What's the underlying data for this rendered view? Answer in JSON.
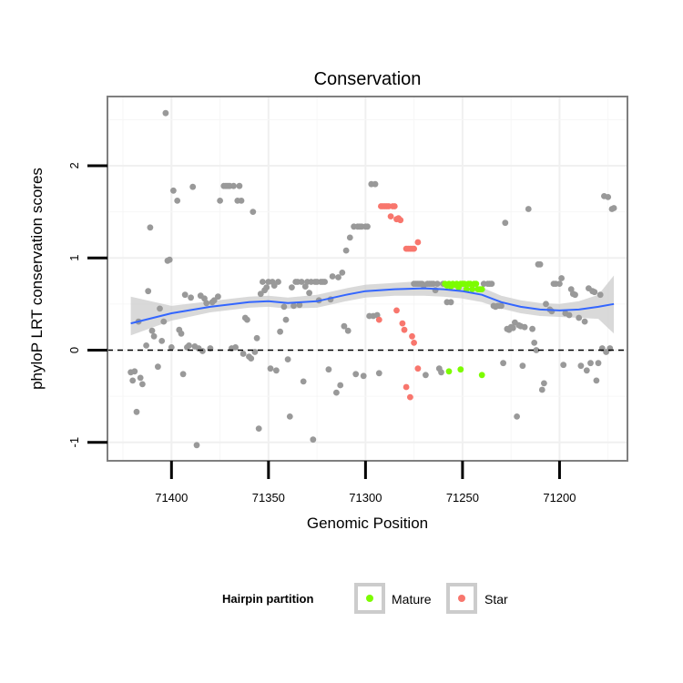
{
  "chart_data": {
    "type": "scatter",
    "title": "Conservation",
    "xlabel": "Genomic Position",
    "ylabel": "phyloP LRT conservation scores",
    "xlim": [
      71433,
      71165
    ],
    "ylim": [
      -1.2,
      2.75
    ],
    "x_reversed": true,
    "x_ticks": [
      71400,
      71350,
      71300,
      71250,
      71200
    ],
    "y_ticks": [
      -1,
      0,
      1,
      2
    ],
    "reference_line": {
      "y": 0,
      "style": "dashed"
    },
    "grid": true,
    "legend_position": "bottom",
    "legend": {
      "title": "Hairpin partition",
      "entries": [
        {
          "label": "Mature",
          "color": "#7cfc00"
        },
        {
          "label": "Star",
          "color": "#f8766d"
        }
      ]
    },
    "colors": {
      "other": "#999999",
      "Mature": "#7cfc00",
      "Star": "#f8766d",
      "smooth": "#3366ff",
      "ribbon": "#cccccc"
    },
    "series": [
      {
        "name": "other",
        "points": [
          [
            71421,
            -0.24
          ],
          [
            71419,
            -0.23
          ],
          [
            71420,
            -0.33
          ],
          [
            71418,
            -0.67
          ],
          [
            71416,
            -0.3
          ],
          [
            71415,
            -0.37
          ],
          [
            71417,
            0.31
          ],
          [
            71413,
            0.05
          ],
          [
            71412,
            0.64
          ],
          [
            71411,
            1.33
          ],
          [
            71410,
            0.21
          ],
          [
            71409,
            0.15
          ],
          [
            71407,
            -0.18
          ],
          [
            71406,
            0.45
          ],
          [
            71405,
            0.1
          ],
          [
            71404,
            0.31
          ],
          [
            71403,
            2.57
          ],
          [
            71402,
            0.97
          ],
          [
            71401,
            0.98
          ],
          [
            71400,
            0.03
          ],
          [
            71399,
            1.73
          ],
          [
            71397,
            1.62
          ],
          [
            71396,
            0.22
          ],
          [
            71395,
            0.18
          ],
          [
            71394,
            -0.26
          ],
          [
            71393,
            0.6
          ],
          [
            71392,
            0.03
          ],
          [
            71391,
            0.05
          ],
          [
            71390,
            0.57
          ],
          [
            71389,
            1.77
          ],
          [
            71388,
            0.04
          ],
          [
            71387,
            -1.03
          ],
          [
            71386,
            0.02
          ],
          [
            71385,
            0.59
          ],
          [
            71384,
            -0.01
          ],
          [
            71383,
            0.56
          ],
          [
            71382,
            0.51
          ],
          [
            71380,
            0.02
          ],
          [
            71379,
            0.52
          ],
          [
            71378,
            0.54
          ],
          [
            71376,
            0.58
          ],
          [
            71375,
            1.62
          ],
          [
            71373,
            1.78
          ],
          [
            71372,
            1.78
          ],
          [
            71371,
            1.78
          ],
          [
            71370,
            1.78
          ],
          [
            71369,
            0.02
          ],
          [
            71368,
            1.78
          ],
          [
            71367,
            0.03
          ],
          [
            71366,
            1.62
          ],
          [
            71365,
            1.78
          ],
          [
            71364,
            1.62
          ],
          [
            71363,
            -0.04
          ],
          [
            71362,
            0.35
          ],
          [
            71361,
            0.33
          ],
          [
            71360,
            -0.07
          ],
          [
            71359,
            -0.09
          ],
          [
            71358,
            1.5
          ],
          [
            71357,
            -0.02
          ],
          [
            71356,
            0.13
          ],
          [
            71355,
            -0.85
          ],
          [
            71354,
            0.61
          ],
          [
            71353,
            0.74
          ],
          [
            71352,
            0.65
          ],
          [
            71351,
            0.68
          ],
          [
            71350,
            0.74
          ],
          [
            71349,
            -0.2
          ],
          [
            71348,
            0.74
          ],
          [
            71347,
            0.7
          ],
          [
            71346,
            -0.22
          ],
          [
            71345,
            0.74
          ],
          [
            71344,
            0.2
          ],
          [
            71342,
            0.47
          ],
          [
            71341,
            0.33
          ],
          [
            71340,
            -0.1
          ],
          [
            71339,
            -0.72
          ],
          [
            71338,
            0.68
          ],
          [
            71337,
            0.48
          ],
          [
            71336,
            0.74
          ],
          [
            71335,
            0.74
          ],
          [
            71334,
            0.49
          ],
          [
            71333,
            0.74
          ],
          [
            71332,
            -0.34
          ],
          [
            71331,
            0.69
          ],
          [
            71330,
            0.74
          ],
          [
            71329,
            0.62
          ],
          [
            71328,
            0.74
          ],
          [
            71327,
            -0.97
          ],
          [
            71326,
            0.74
          ],
          [
            71325,
            0.74
          ],
          [
            71324,
            0.54
          ],
          [
            71323,
            0.74
          ],
          [
            71322,
            0.74
          ],
          [
            71321,
            0.74
          ],
          [
            71319,
            -0.21
          ],
          [
            71318,
            0.55
          ],
          [
            71317,
            0.8
          ],
          [
            71315,
            -0.46
          ],
          [
            71314,
            0.79
          ],
          [
            71313,
            -0.38
          ],
          [
            71312,
            0.84
          ],
          [
            71311,
            0.26
          ],
          [
            71310,
            1.08
          ],
          [
            71309,
            0.21
          ],
          [
            71308,
            1.22
          ],
          [
            71306,
            1.34
          ],
          [
            71305,
            -0.26
          ],
          [
            71304,
            1.34
          ],
          [
            71303,
            1.34
          ],
          [
            71302,
            1.34
          ],
          [
            71301,
            -0.28
          ],
          [
            71300,
            1.34
          ],
          [
            71299,
            1.34
          ],
          [
            71298,
            0.37
          ],
          [
            71297,
            1.8
          ],
          [
            71296,
            0.37
          ],
          [
            71295,
            1.8
          ],
          [
            71294,
            0.38
          ],
          [
            71293,
            -0.25
          ],
          [
            71275,
            0.72
          ],
          [
            71274,
            0.72
          ],
          [
            71273,
            0.72
          ],
          [
            71272,
            0.72
          ],
          [
            71271,
            0.72
          ],
          [
            71270,
            0.7
          ],
          [
            71269,
            -0.27
          ],
          [
            71268,
            0.72
          ],
          [
            71267,
            0.72
          ],
          [
            71266,
            0.72
          ],
          [
            71265,
            0.72
          ],
          [
            71264,
            0.65
          ],
          [
            71263,
            0.72
          ],
          [
            71262,
            -0.2
          ],
          [
            71261,
            -0.24
          ],
          [
            71260,
            0.72
          ],
          [
            71258,
            0.52
          ],
          [
            71256,
            0.52
          ],
          [
            71239,
            0.72
          ],
          [
            71237,
            0.72
          ],
          [
            71236,
            0.72
          ],
          [
            71235,
            0.72
          ],
          [
            71234,
            0.48
          ],
          [
            71233,
            0.47
          ],
          [
            71232,
            0.48
          ],
          [
            71231,
            0.48
          ],
          [
            71230,
            0.48
          ],
          [
            71229,
            -0.14
          ],
          [
            71228,
            1.38
          ],
          [
            71227,
            0.23
          ],
          [
            71226,
            0.22
          ],
          [
            71225,
            0.25
          ],
          [
            71224,
            0.24
          ],
          [
            71223,
            0.3
          ],
          [
            71222,
            -0.72
          ],
          [
            71221,
            0.27
          ],
          [
            71220,
            0.26
          ],
          [
            71219,
            -0.17
          ],
          [
            71218,
            0.25
          ],
          [
            71216,
            1.53
          ],
          [
            71214,
            0.23
          ],
          [
            71213,
            0.08
          ],
          [
            71212,
            0.0
          ],
          [
            71211,
            0.93
          ],
          [
            71210,
            0.93
          ],
          [
            71209,
            -0.43
          ],
          [
            71208,
            -0.36
          ],
          [
            71207,
            0.5
          ],
          [
            71205,
            0.44
          ],
          [
            71204,
            0.42
          ],
          [
            71203,
            0.72
          ],
          [
            71202,
            0.72
          ],
          [
            71200,
            0.72
          ],
          [
            71199,
            0.78
          ],
          [
            71198,
            -0.16
          ],
          [
            71197,
            0.4
          ],
          [
            71195,
            0.38
          ],
          [
            71194,
            0.66
          ],
          [
            71193,
            0.61
          ],
          [
            71192,
            0.6
          ],
          [
            71190,
            0.35
          ],
          [
            71189,
            -0.17
          ],
          [
            71187,
            0.31
          ],
          [
            71186,
            -0.22
          ],
          [
            71185,
            0.67
          ],
          [
            71184,
            -0.14
          ],
          [
            71183,
            0.64
          ],
          [
            71182,
            0.63
          ],
          [
            71181,
            -0.33
          ],
          [
            71180,
            -0.14
          ],
          [
            71179,
            0.6
          ],
          [
            71178,
            0.02
          ],
          [
            71177,
            1.67
          ],
          [
            71176,
            -0.02
          ],
          [
            71175,
            1.66
          ],
          [
            71174,
            0.02
          ],
          [
            71173,
            1.53
          ],
          [
            71172,
            1.54
          ]
        ]
      },
      {
        "name": "Mature",
        "points": [
          [
            71259,
            0.72
          ],
          [
            71258,
            0.7
          ],
          [
            71257,
            0.72
          ],
          [
            71256,
            0.69
          ],
          [
            71255,
            0.72
          ],
          [
            71254,
            0.71
          ],
          [
            71253,
            0.72
          ],
          [
            71252,
            0.68
          ],
          [
            71251,
            0.72
          ],
          [
            71250,
            0.72
          ],
          [
            71249,
            0.72
          ],
          [
            71248,
            0.66
          ],
          [
            71247,
            0.72
          ],
          [
            71246,
            0.72
          ],
          [
            71245,
            0.66
          ],
          [
            71244,
            0.72
          ],
          [
            71243,
            0.72
          ],
          [
            71242,
            0.66
          ],
          [
            71241,
            0.66
          ],
          [
            71240,
            0.66
          ],
          [
            71257,
            -0.23
          ],
          [
            71251,
            -0.21
          ],
          [
            71240,
            -0.27
          ]
        ]
      },
      {
        "name": "Star",
        "points": [
          [
            71292,
            1.56
          ],
          [
            71291,
            1.56
          ],
          [
            71290,
            1.56
          ],
          [
            71289,
            1.56
          ],
          [
            71288,
            1.56
          ],
          [
            71287,
            1.45
          ],
          [
            71286,
            1.56
          ],
          [
            71285,
            1.56
          ],
          [
            71284,
            1.42
          ],
          [
            71283,
            1.43
          ],
          [
            71282,
            1.41
          ],
          [
            71279,
            1.1
          ],
          [
            71278,
            1.1
          ],
          [
            71277,
            1.1
          ],
          [
            71276,
            1.1
          ],
          [
            71275,
            1.1
          ],
          [
            71273,
            1.17
          ],
          [
            71293,
            0.33
          ],
          [
            71284,
            0.43
          ],
          [
            71281,
            0.29
          ],
          [
            71280,
            0.22
          ],
          [
            71276,
            0.15
          ],
          [
            71275,
            0.08
          ],
          [
            71273,
            -0.2
          ],
          [
            71279,
            -0.4
          ],
          [
            71277,
            -0.51
          ]
        ]
      }
    ],
    "smooth": {
      "x": [
        71421,
        71400,
        71380,
        71360,
        71350,
        71340,
        71325,
        71310,
        71300,
        71285,
        71270,
        71260,
        71250,
        71240,
        71230,
        71220,
        71210,
        71200,
        71190,
        71180,
        71172
      ],
      "y": [
        0.29,
        0.4,
        0.47,
        0.52,
        0.53,
        0.51,
        0.53,
        0.6,
        0.64,
        0.66,
        0.67,
        0.66,
        0.64,
        0.6,
        0.52,
        0.47,
        0.44,
        0.43,
        0.44,
        0.47,
        0.5
      ],
      "lower": [
        0.16,
        0.32,
        0.41,
        0.46,
        0.47,
        0.45,
        0.46,
        0.53,
        0.57,
        0.59,
        0.59,
        0.58,
        0.56,
        0.52,
        0.45,
        0.4,
        0.37,
        0.36,
        0.35,
        0.34,
        0.18
      ],
      "upper": [
        0.58,
        0.48,
        0.53,
        0.58,
        0.59,
        0.57,
        0.6,
        0.67,
        0.71,
        0.73,
        0.75,
        0.74,
        0.72,
        0.68,
        0.59,
        0.54,
        0.51,
        0.5,
        0.53,
        0.6,
        0.81
      ]
    }
  }
}
